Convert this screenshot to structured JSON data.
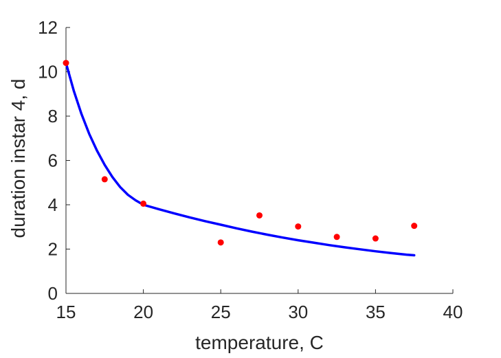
{
  "chart_data": {
    "type": "scatter",
    "title": "",
    "xlabel": "temperature, C",
    "ylabel": "duration instar 4, d",
    "xlim": [
      15,
      40
    ],
    "ylim": [
      0,
      12
    ],
    "xticks": [
      15,
      20,
      25,
      30,
      35,
      40
    ],
    "yticks": [
      0,
      2,
      4,
      6,
      8,
      10,
      12
    ],
    "grid": false,
    "box": "off",
    "series": [
      {
        "kind": "points",
        "color": "#ff0000",
        "x": [
          15,
          17.5,
          20,
          25,
          27.5,
          30,
          32.5,
          35,
          37.5
        ],
        "y": [
          10.4,
          5.15,
          4.05,
          2.3,
          3.52,
          3.02,
          2.55,
          2.48,
          3.05
        ]
      },
      {
        "kind": "line",
        "color": "#0000ff",
        "x": [
          15,
          15.5,
          16,
          16.5,
          17,
          17.5,
          18,
          18.5,
          19,
          19.5,
          20,
          21,
          22,
          23,
          24,
          25,
          26,
          27,
          28,
          29,
          30,
          31,
          32,
          33,
          34,
          35,
          36,
          37,
          37.5
        ],
        "y": [
          10.4,
          9.15,
          8.1,
          7.2,
          6.45,
          5.8,
          5.25,
          4.8,
          4.45,
          4.2,
          4.0,
          3.8,
          3.61,
          3.43,
          3.26,
          3.1,
          2.94,
          2.79,
          2.65,
          2.52,
          2.4,
          2.29,
          2.18,
          2.08,
          1.99,
          1.9,
          1.82,
          1.75,
          1.72
        ]
      }
    ]
  }
}
